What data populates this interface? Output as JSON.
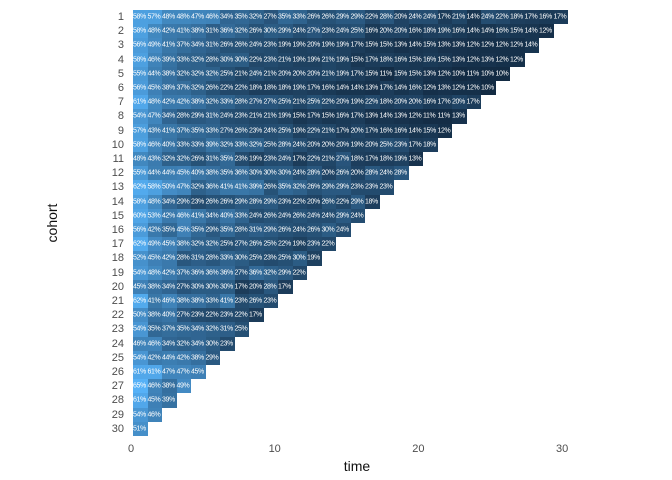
{
  "chart_data": {
    "type": "heatmap",
    "title": "",
    "xlabel": "time",
    "ylabel": "cohort",
    "x_ticks": [
      0,
      10,
      20,
      30
    ],
    "y_ticks": [
      1,
      2,
      3,
      4,
      5,
      6,
      7,
      8,
      9,
      10,
      11,
      12,
      13,
      14,
      15,
      16,
      17,
      18,
      19,
      20,
      21,
      22,
      23,
      24,
      25,
      26,
      27,
      28,
      29,
      30
    ],
    "xlim": [
      0,
      31
    ],
    "grid": false,
    "legend": "none",
    "value_format": "percent",
    "color_scale": {
      "low": "#132B43",
      "high": "#56B1F7",
      "domain": [
        10,
        65
      ]
    },
    "label_color": "#ffffff",
    "matrix": [
      [
        58,
        57,
        48,
        48,
        47,
        46,
        34,
        35,
        32,
        27,
        35,
        33,
        26,
        26,
        29,
        29,
        22,
        28,
        20,
        24,
        24,
        17,
        21,
        14,
        24,
        22,
        18,
        17,
        16,
        17
      ],
      [
        58,
        48,
        42,
        41,
        38,
        31,
        36,
        32,
        26,
        30,
        29,
        24,
        27,
        23,
        24,
        25,
        16,
        20,
        20,
        16,
        18,
        19,
        16,
        14,
        14,
        16,
        15,
        14,
        12
      ],
      [
        56,
        49,
        41,
        37,
        34,
        31,
        26,
        26,
        24,
        23,
        19,
        19,
        20,
        19,
        19,
        17,
        15,
        15,
        13,
        14,
        15,
        13,
        13,
        12,
        12,
        12,
        12,
        14
      ],
      [
        58,
        46,
        39,
        33,
        32,
        28,
        30,
        30,
        22,
        23,
        21,
        19,
        19,
        21,
        19,
        15,
        17,
        18,
        16,
        15,
        16,
        15,
        13,
        12,
        13,
        12,
        12
      ],
      [
        55,
        44,
        38,
        32,
        32,
        32,
        25,
        21,
        24,
        21,
        20,
        20,
        20,
        21,
        19,
        17,
        15,
        11,
        15,
        15,
        13,
        12,
        10,
        11,
        10,
        10
      ],
      [
        56,
        45,
        38,
        37,
        32,
        26,
        22,
        22,
        18,
        18,
        18,
        19,
        17,
        16,
        14,
        14,
        13,
        17,
        14,
        16,
        12,
        13,
        12,
        12,
        10
      ],
      [
        61,
        48,
        42,
        42,
        38,
        32,
        33,
        28,
        27,
        27,
        25,
        21,
        25,
        22,
        20,
        19,
        22,
        18,
        20,
        20,
        16,
        17,
        20,
        17
      ],
      [
        54,
        47,
        34,
        28,
        29,
        31,
        24,
        23,
        21,
        21,
        19,
        15,
        17,
        15,
        16,
        17,
        13,
        14,
        13,
        12,
        11,
        11,
        13
      ],
      [
        57,
        43,
        41,
        37,
        35,
        33,
        27,
        26,
        23,
        24,
        25,
        19,
        22,
        21,
        17,
        20,
        17,
        16,
        16,
        14,
        15,
        12
      ],
      [
        58,
        46,
        40,
        33,
        33,
        39,
        32,
        33,
        32,
        25,
        28,
        24,
        20,
        20,
        20,
        19,
        20,
        25,
        23,
        17,
        18
      ],
      [
        48,
        43,
        32,
        32,
        26,
        31,
        35,
        23,
        19,
        23,
        24,
        17,
        22,
        21,
        27,
        18,
        17,
        18,
        19,
        13
      ],
      [
        55,
        44,
        44,
        45,
        40,
        38,
        35,
        36,
        30,
        30,
        30,
        24,
        28,
        20,
        26,
        20,
        28,
        24,
        28
      ],
      [
        62,
        58,
        50,
        47,
        32,
        36,
        41,
        41,
        39,
        26,
        35,
        32,
        26,
        29,
        29,
        23,
        23,
        23
      ],
      [
        58,
        48,
        34,
        29,
        23,
        26,
        26,
        29,
        28,
        29,
        23,
        22,
        20,
        26,
        22,
        29,
        18
      ],
      [
        60,
        53,
        42,
        46,
        41,
        34,
        40,
        33,
        24,
        26,
        24,
        26,
        24,
        24,
        29,
        24
      ],
      [
        56,
        42,
        35,
        45,
        35,
        29,
        35,
        28,
        31,
        29,
        26,
        24,
        26,
        30,
        24
      ],
      [
        62,
        49,
        45,
        38,
        32,
        32,
        25,
        27,
        26,
        25,
        22,
        19,
        23,
        22
      ],
      [
        52,
        45,
        42,
        28,
        31,
        28,
        33,
        30,
        25,
        23,
        25,
        30,
        19
      ],
      [
        54,
        48,
        42,
        37,
        36,
        36,
        36,
        27,
        36,
        32,
        29,
        22
      ],
      [
        45,
        38,
        34,
        27,
        30,
        30,
        30,
        17,
        20,
        28,
        17
      ],
      [
        62,
        41,
        46,
        38,
        38,
        33,
        41,
        23,
        26,
        23
      ],
      [
        50,
        38,
        40,
        27,
        23,
        22,
        23,
        22,
        17
      ],
      [
        54,
        35,
        37,
        35,
        34,
        32,
        31,
        25
      ],
      [
        46,
        46,
        34,
        32,
        34,
        30,
        23
      ],
      [
        54,
        42,
        44,
        42,
        38,
        29
      ],
      [
        61,
        61,
        47,
        47,
        45
      ],
      [
        65,
        46,
        38,
        49
      ],
      [
        61,
        45,
        39
      ],
      [
        54,
        46
      ],
      [
        51
      ]
    ]
  }
}
